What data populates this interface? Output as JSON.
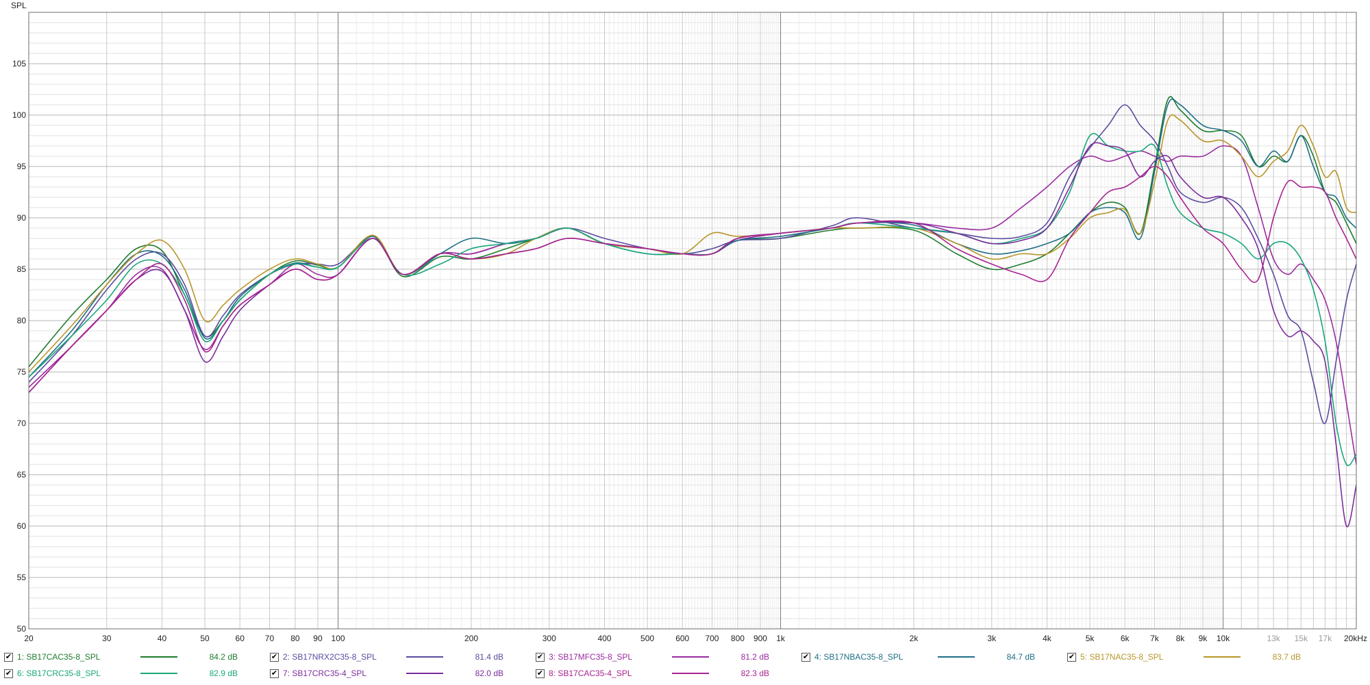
{
  "chart_data": {
    "type": "line",
    "ylabel": "SPL",
    "ylim": [
      50,
      110
    ],
    "xlim": [
      20,
      20000
    ],
    "xscale": "log",
    "grid": true,
    "x_tick_labels": [
      {
        "v": 20,
        "t": "20"
      },
      {
        "v": 30,
        "t": "30"
      },
      {
        "v": 40,
        "t": "40"
      },
      {
        "v": 50,
        "t": "50"
      },
      {
        "v": 60,
        "t": "60"
      },
      {
        "v": 70,
        "t": "70"
      },
      {
        "v": 80,
        "t": "80"
      },
      {
        "v": 90,
        "t": "90"
      },
      {
        "v": 100,
        "t": "100"
      },
      {
        "v": 200,
        "t": "200"
      },
      {
        "v": 300,
        "t": "300"
      },
      {
        "v": 400,
        "t": "400"
      },
      {
        "v": 500,
        "t": "500"
      },
      {
        "v": 600,
        "t": "600"
      },
      {
        "v": 700,
        "t": "700"
      },
      {
        "v": 800,
        "t": "800"
      },
      {
        "v": 900,
        "t": "900"
      },
      {
        "v": 1000,
        "t": "1k"
      },
      {
        "v": 2000,
        "t": "2k"
      },
      {
        "v": 3000,
        "t": "3k"
      },
      {
        "v": 4000,
        "t": "4k"
      },
      {
        "v": 5000,
        "t": "5k"
      },
      {
        "v": 6000,
        "t": "6k"
      },
      {
        "v": 7000,
        "t": "7k"
      },
      {
        "v": 8000,
        "t": "8k"
      },
      {
        "v": 9000,
        "t": "9k"
      },
      {
        "v": 10000,
        "t": "10k"
      },
      {
        "v": 13000,
        "t": "13k"
      },
      {
        "v": 15000,
        "t": "15k"
      },
      {
        "v": 17000,
        "t": "17k"
      },
      {
        "v": 20000,
        "t": "20kHz"
      }
    ],
    "y_ticks": [
      50,
      55,
      60,
      65,
      70,
      75,
      80,
      85,
      90,
      95,
      100,
      105
    ],
    "x": [
      20,
      25,
      30,
      35,
      40,
      45,
      50,
      55,
      60,
      70,
      80,
      90,
      100,
      120,
      140,
      170,
      200,
      240,
      280,
      330,
      400,
      500,
      600,
      700,
      800,
      1000,
      1300,
      1500,
      2000,
      2500,
      3000,
      3500,
      4000,
      4500,
      5000,
      5500,
      6000,
      6500,
      7000,
      7500,
      8000,
      9000,
      10000,
      11000,
      12000,
      13000,
      14000,
      15000,
      16000,
      17000,
      18000,
      19000,
      20000
    ],
    "series": [
      {
        "name": "1: SB17CAC35-8_SPL",
        "color": "#1e7b2e",
        "db": "84.2 dB",
        "values": [
          75.5,
          80.5,
          84,
          87,
          86.8,
          82.5,
          78.5,
          80,
          82,
          84.5,
          85.8,
          85.4,
          85.2,
          88.2,
          84.3,
          86.2,
          86,
          87,
          88,
          89,
          87.5,
          87,
          86.5,
          86.5,
          87.8,
          88,
          88.8,
          89,
          88.8,
          86.5,
          85,
          85.5,
          86.5,
          88.5,
          90.5,
          91.5,
          91,
          88.5,
          95,
          101.5,
          100.5,
          98.5,
          98.5,
          98,
          95,
          96,
          95.5,
          98,
          96,
          92.5,
          91.5,
          89.5,
          87.5
        ]
      },
      {
        "name": "2: SB17NRX2C35-8_SPL",
        "color": "#5b4a9e",
        "db": "81.4 dB",
        "values": [
          74,
          78.5,
          83,
          86,
          86.5,
          83.5,
          78.5,
          80.5,
          82.5,
          84.5,
          85.5,
          85.5,
          85.5,
          88,
          84.5,
          86.5,
          86.5,
          87.5,
          88,
          89,
          88,
          87,
          86.5,
          87,
          87.8,
          88,
          89.2,
          90,
          89,
          88.5,
          88,
          88.2,
          89.5,
          94,
          96.8,
          99,
          101,
          99,
          97.5,
          95,
          92.5,
          91.5,
          92,
          91,
          88,
          84.5,
          80.5,
          79,
          74,
          70,
          76,
          82,
          85.5
        ]
      },
      {
        "name": "3: SB17MFC35-8_SPL",
        "color": "#9a2aa0",
        "db": "81.2 dB",
        "values": [
          73.5,
          77.5,
          81,
          84.5,
          85,
          81,
          77.2,
          79.5,
          81.5,
          83.5,
          85.5,
          84.5,
          84.5,
          88,
          84.5,
          86.5,
          86.5,
          87.5,
          88,
          89,
          87.5,
          87,
          86.5,
          86.5,
          87.8,
          88.5,
          89,
          89.5,
          89.5,
          89,
          89,
          91,
          93,
          95,
          96,
          95.5,
          96,
          96.5,
          96,
          95.5,
          96,
          96,
          97,
          96,
          91,
          86,
          84.5,
          85.5,
          84,
          82,
          78,
          72,
          66
        ]
      },
      {
        "name": "4: SB17NBAC35-8_SPL",
        "color": "#1e6f86",
        "db": "84.7 dB",
        "values": [
          74.5,
          79,
          83.5,
          86.5,
          86.3,
          83,
          78.3,
          80,
          82.3,
          84.5,
          85.6,
          85.2,
          85.2,
          88.2,
          84.5,
          86.5,
          88,
          87.5,
          88,
          89,
          87.5,
          86.5,
          86.5,
          86.5,
          87.8,
          88.2,
          89,
          89.5,
          89.3,
          87.5,
          86.5,
          86.8,
          87.5,
          88.5,
          90.5,
          91,
          90.5,
          88,
          94.5,
          101,
          101,
          99,
          98.5,
          97.5,
          95,
          96.5,
          95.5,
          98,
          95,
          92.5,
          92,
          90,
          89
        ]
      },
      {
        "name": "5: SB17NAC35-8_SPL",
        "color": "#b8952a",
        "db": "83.7 dB",
        "values": [
          75,
          79.5,
          83.5,
          86.5,
          87.8,
          85,
          80,
          81.5,
          83,
          85,
          86,
          85.5,
          85.2,
          88.3,
          84.5,
          86.5,
          86,
          86.5,
          88,
          89,
          87.5,
          87,
          86.5,
          88.5,
          88.2,
          88.5,
          89,
          89,
          89,
          87.5,
          86,
          86.5,
          86.5,
          88,
          90,
          90.5,
          90.8,
          88.5,
          93.5,
          99.5,
          99.5,
          97.5,
          97.5,
          96,
          94,
          95.5,
          96.5,
          99,
          97,
          94,
          94.5,
          91,
          90.5
        ]
      },
      {
        "name": "6: SB17CRC35-8_SPL",
        "color": "#18a67a",
        "db": "82.9 dB",
        "values": [
          74.5,
          78.5,
          82,
          85.5,
          85.5,
          82.5,
          78,
          80,
          82,
          84.5,
          85.5,
          85.2,
          85.2,
          88,
          84.5,
          85.5,
          87,
          87.5,
          88,
          89,
          87.5,
          86.5,
          86.5,
          86.5,
          88,
          88.5,
          89,
          89.5,
          89,
          88.5,
          87.5,
          88,
          89,
          92.5,
          98,
          97,
          96.5,
          96.5,
          97,
          93,
          90.5,
          89,
          88.5,
          87.5,
          86,
          87.5,
          87.5,
          86,
          83,
          78,
          70,
          66,
          67
        ]
      },
      {
        "name": "7: SB17CRC35-4_SPL",
        "color": "#7a2d9a",
        "db": "82.0 dB",
        "values": [
          73,
          77.5,
          81,
          84,
          84.8,
          81,
          76,
          78.5,
          81,
          83.5,
          85,
          84,
          84.5,
          88,
          84.5,
          86.5,
          86,
          86.5,
          87,
          88,
          87.5,
          87,
          86.5,
          86.5,
          88,
          88.5,
          89,
          89.5,
          89.5,
          88.5,
          87.5,
          87.8,
          89,
          93,
          97,
          97,
          96.5,
          94,
          95.5,
          96,
          94,
          92,
          92,
          90,
          87,
          81,
          78.5,
          79,
          78,
          76,
          68,
          60,
          64
        ]
      },
      {
        "name": "8: SB17CAC35-4_SPL",
        "color": "#a8238e",
        "db": "82.3 dB",
        "values": [
          73,
          77.5,
          81,
          84,
          85.5,
          82,
          77,
          79.5,
          81.5,
          83.5,
          85,
          84,
          84.5,
          88,
          84.5,
          86.5,
          86,
          86.5,
          87,
          88,
          87.5,
          87,
          86.5,
          86.5,
          88,
          88.5,
          89,
          89.5,
          89.5,
          87,
          85.5,
          84.5,
          84,
          88,
          90.5,
          92.5,
          93,
          94,
          95,
          94,
          92,
          89,
          87.5,
          85,
          84,
          90,
          93.5,
          93,
          93,
          92.5,
          90,
          88,
          86
        ]
      }
    ]
  }
}
